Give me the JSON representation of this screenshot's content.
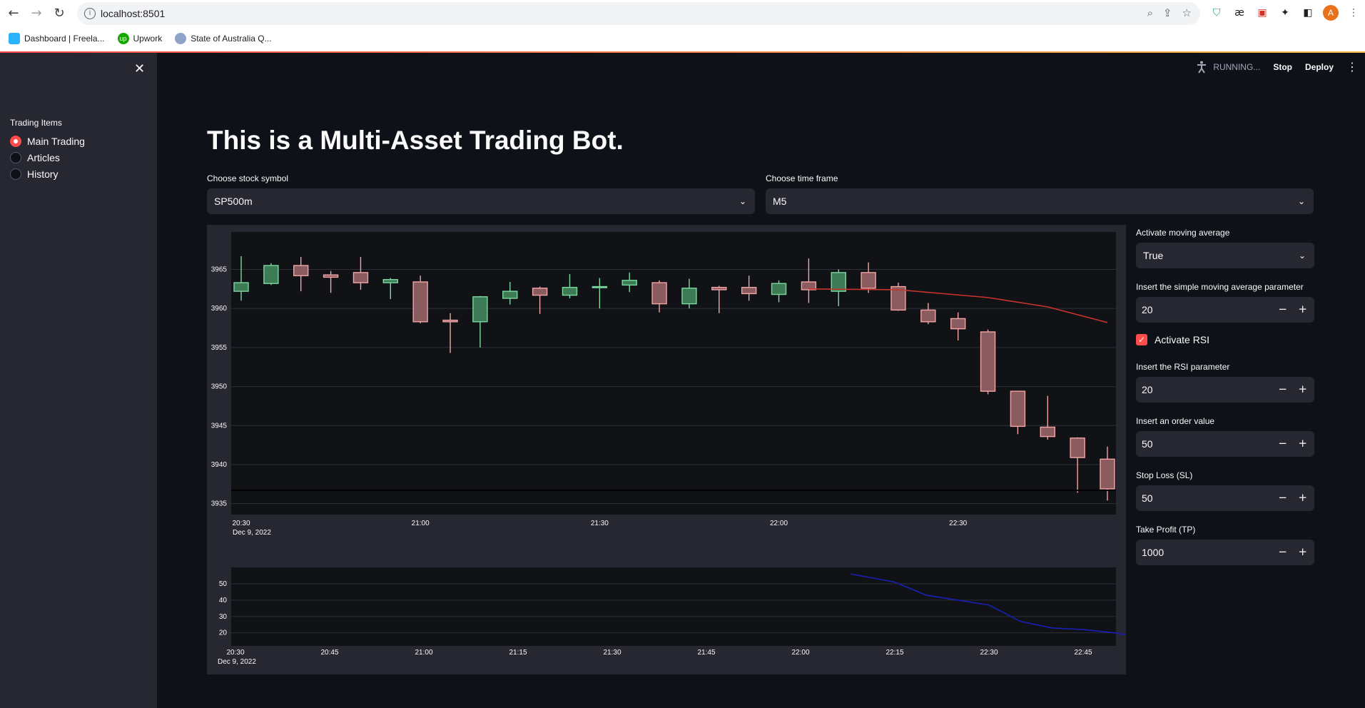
{
  "browser": {
    "url": "localhost:8501",
    "bookmarks": [
      {
        "label": "Dashboard | Freela..."
      },
      {
        "label": "Upwork"
      },
      {
        "label": "State of Australia Q..."
      }
    ],
    "avatar_letter": "A"
  },
  "sidebar": {
    "radio_title": "Trading Items",
    "items": [
      {
        "label": "Main Trading",
        "selected": true
      },
      {
        "label": "Articles",
        "selected": false
      },
      {
        "label": "History",
        "selected": false
      }
    ]
  },
  "toolbar": {
    "status": "RUNNING...",
    "stop_label": "Stop",
    "deploy_label": "Deploy"
  },
  "main": {
    "title": "This is a Multi-Asset Trading Bot.",
    "symbol_label": "Choose stock symbol",
    "symbol_value": "SP500m",
    "timeframe_label": "Choose time frame",
    "timeframe_value": "M5"
  },
  "controls": {
    "ma_label": "Activate moving average",
    "ma_value": "True",
    "sma_label": "Insert the simple moving average parameter",
    "sma_value": "20",
    "rsi_check_label": "Activate RSI",
    "rsi_checked": true,
    "rsi_label": "Insert the RSI parameter",
    "rsi_value": "20",
    "order_label": "Insert an order value",
    "order_value": "50",
    "sl_label": "Stop Loss (SL)",
    "sl_value": "50",
    "tp_label": "Take Profit (TP)",
    "tp_value": "1000"
  },
  "chart_data": [
    {
      "type": "candlestick",
      "date_label": "Dec 9, 2022",
      "x_ticks": [
        "20:30",
        "21:00",
        "21:30",
        "22:00",
        "22:30"
      ],
      "y_ticks": [
        3935,
        3940,
        3945,
        3950,
        3955,
        3960,
        3965
      ],
      "ylim": [
        3933.6,
        3969.8
      ],
      "candles": [
        {
          "t": "20:30",
          "o": 3962.2,
          "h": 3966.7,
          "l": 3961.0,
          "c": 3963.3
        },
        {
          "t": "20:35",
          "o": 3963.2,
          "h": 3965.8,
          "l": 3963.0,
          "c": 3965.5
        },
        {
          "t": "20:40",
          "o": 3965.5,
          "h": 3966.6,
          "l": 3962.2,
          "c": 3964.2
        },
        {
          "t": "20:45",
          "o": 3964.3,
          "h": 3964.8,
          "l": 3962.0,
          "c": 3964.0
        },
        {
          "t": "20:50",
          "o": 3964.6,
          "h": 3966.6,
          "l": 3962.4,
          "c": 3963.3
        },
        {
          "t": "20:55",
          "o": 3963.3,
          "h": 3963.9,
          "l": 3961.2,
          "c": 3963.7
        },
        {
          "t": "21:00",
          "o": 3963.4,
          "h": 3964.2,
          "l": 3958.1,
          "c": 3958.3
        },
        {
          "t": "21:05",
          "o": 3958.5,
          "h": 3959.4,
          "l": 3954.3,
          "c": 3958.3
        },
        {
          "t": "21:10",
          "o": 3958.3,
          "h": 3961.6,
          "l": 3955.0,
          "c": 3961.5
        },
        {
          "t": "21:15",
          "o": 3961.3,
          "h": 3963.4,
          "l": 3960.5,
          "c": 3962.2
        },
        {
          "t": "21:20",
          "o": 3962.6,
          "h": 3962.8,
          "l": 3959.3,
          "c": 3961.7
        },
        {
          "t": "21:25",
          "o": 3961.7,
          "h": 3964.4,
          "l": 3961.3,
          "c": 3962.7
        },
        {
          "t": "21:30",
          "o": 3962.7,
          "h": 3963.9,
          "l": 3960.0,
          "c": 3962.8
        },
        {
          "t": "21:35",
          "o": 3963.0,
          "h": 3964.6,
          "l": 3962.1,
          "c": 3963.6
        },
        {
          "t": "21:40",
          "o": 3963.3,
          "h": 3963.6,
          "l": 3959.5,
          "c": 3960.6
        },
        {
          "t": "21:45",
          "o": 3960.6,
          "h": 3963.8,
          "l": 3960.0,
          "c": 3962.6
        },
        {
          "t": "21:50",
          "o": 3962.7,
          "h": 3962.9,
          "l": 3959.4,
          "c": 3962.4
        },
        {
          "t": "21:55",
          "o": 3962.7,
          "h": 3964.2,
          "l": 3961.0,
          "c": 3961.9
        },
        {
          "t": "22:00",
          "o": 3961.8,
          "h": 3963.6,
          "l": 3960.8,
          "c": 3963.2
        },
        {
          "t": "22:05",
          "o": 3963.4,
          "h": 3966.4,
          "l": 3960.7,
          "c": 3962.4
        },
        {
          "t": "22:10",
          "o": 3962.2,
          "h": 3965.0,
          "l": 3960.3,
          "c": 3964.6
        },
        {
          "t": "22:15",
          "o": 3964.6,
          "h": 3965.9,
          "l": 3962.0,
          "c": 3962.6
        },
        {
          "t": "22:20",
          "o": 3962.8,
          "h": 3963.3,
          "l": 3959.7,
          "c": 3959.8
        },
        {
          "t": "22:25",
          "o": 3959.8,
          "h": 3960.7,
          "l": 3958.0,
          "c": 3958.3
        },
        {
          "t": "22:30",
          "o": 3958.7,
          "h": 3959.5,
          "l": 3955.9,
          "c": 3957.4
        },
        {
          "t": "22:35",
          "o": 3957.0,
          "h": 3957.3,
          "l": 3949.0,
          "c": 3949.4
        },
        {
          "t": "22:40",
          "o": 3949.4,
          "h": 3949.4,
          "l": 3943.9,
          "c": 3944.9
        },
        {
          "t": "22:45",
          "o": 3944.8,
          "h": 3948.8,
          "l": 3943.2,
          "c": 3943.6
        },
        {
          "t": "22:50",
          "o": 3943.4,
          "h": 3943.5,
          "l": 3936.4,
          "c": 3940.9
        },
        {
          "t": "22:55",
          "o": 3940.7,
          "h": 3942.3,
          "l": 3935.4,
          "c": 3936.9
        }
      ],
      "moving_average": [
        {
          "t": "22:05",
          "v": 3962.5
        },
        {
          "t": "22:20",
          "v": 3962.4
        },
        {
          "t": "22:35",
          "v": 3961.4
        },
        {
          "t": "22:45",
          "v": 3960.2
        },
        {
          "t": "22:55",
          "v": 3958.2
        }
      ],
      "horizontal_line": 3936.7
    },
    {
      "type": "line",
      "date_label": "Dec 9, 2022",
      "x_ticks": [
        "20:30",
        "20:45",
        "21:00",
        "21:15",
        "21:30",
        "21:45",
        "22:00",
        "22:15",
        "22:30",
        "22:45"
      ],
      "y_ticks": [
        20,
        30,
        40,
        50
      ],
      "ylim": [
        12,
        60
      ],
      "series": [
        {
          "points": [
            {
              "t": "22:08",
              "v": 56
            },
            {
              "t": "22:15",
              "v": 51
            },
            {
              "t": "22:20",
              "v": 43
            },
            {
              "t": "22:25",
              "v": 40
            },
            {
              "t": "22:30",
              "v": 37
            },
            {
              "t": "22:35",
              "v": 27
            },
            {
              "t": "22:40",
              "v": 23
            },
            {
              "t": "22:45",
              "v": 22
            },
            {
              "t": "22:50",
              "v": 20
            },
            {
              "t": "22:55",
              "v": 17
            }
          ]
        }
      ]
    }
  ],
  "colors": {
    "accent": "#ff4b4b",
    "bull": "#7bd99f",
    "bear": "#f2a5a5",
    "ma_line": "#c8342c",
    "rsi_line": "#1a1fb5"
  }
}
